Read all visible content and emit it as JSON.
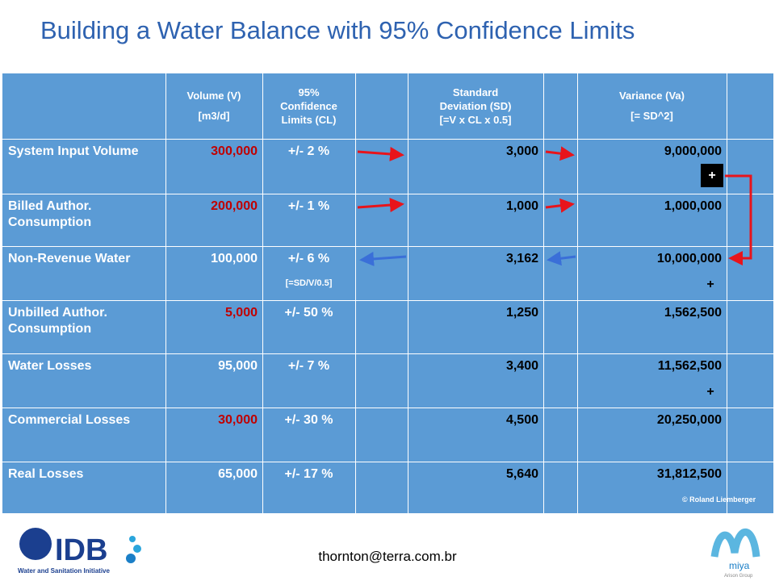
{
  "title": "Building a Water Balance with 95% Confidence Limits",
  "table": {
    "header": [
      [],
      [
        "Volume (V)",
        "[m3/d]"
      ],
      [
        "95%",
        "Confidence",
        "Limits (CL)"
      ],
      [],
      [
        "Standard",
        "Deviation (SD)",
        "[=V x CL x 0.5]"
      ],
      [],
      [
        "Variance (Va)",
        "[= SD^2]"
      ],
      []
    ],
    "rows": [
      {
        "label": "System Input Volume",
        "volume": "300,000",
        "volume_color": "#c00000",
        "cl": "+/- 2 %",
        "sd": "3,000",
        "variance": "9,000,000"
      },
      {
        "label": "Billed Author. Consumption",
        "volume": "200,000",
        "volume_color": "#c00000",
        "cl": "+/- 1 %",
        "sd": "1,000",
        "variance": "1,000,000"
      },
      {
        "label": "Non-Revenue Water",
        "volume": "100,000",
        "volume_color": "#ffffff",
        "cl": "+/- 6 %",
        "cl_note": "[=SD/V/0.5]",
        "sd": "3,162",
        "variance": "10,000,000",
        "plus": "+"
      },
      {
        "label": "Unbilled Author. Consumption",
        "volume": "5,000",
        "volume_color": "#c00000",
        "cl": "+/- 50 %",
        "sd": "1,250",
        "variance": "1,562,500"
      },
      {
        "label": "Water Losses",
        "volume": "95,000",
        "volume_color": "#ffffff",
        "cl": "+/- 7 %",
        "sd": "3,400",
        "variance": "11,562,500",
        "plus": "+"
      },
      {
        "label": "Commercial Losses",
        "volume": "30,000",
        "volume_color": "#c00000",
        "cl": "+/- 30 %",
        "sd": "4,500",
        "variance": "20,250,000"
      },
      {
        "label": "Real Losses",
        "volume": "65,000",
        "volume_color": "#ffffff",
        "cl": "+/- 17 %",
        "sd": "5,640",
        "variance": "31,812,500"
      }
    ],
    "sum_sign": "+",
    "credit": "© Roland Liemberger"
  },
  "footer": {
    "email": "thornton@terra.com.br",
    "left_logo": "IDB",
    "left_logo_caption": "Water and Sanitation Initiative",
    "right_logo": "miya",
    "right_logo_caption": "Arison Group"
  }
}
